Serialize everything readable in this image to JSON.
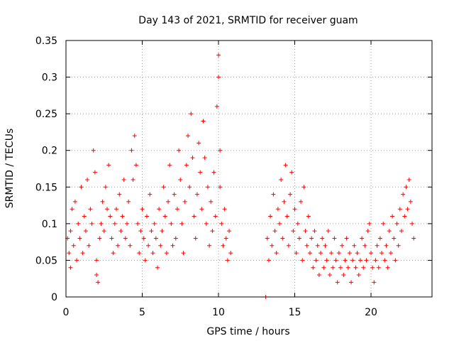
{
  "chart_data": {
    "type": "scatter",
    "title": "Day 143 of 2021, SRMTID for receiver guam",
    "xlabel": "GPS time / hours",
    "ylabel": "SRMTID / TECUs",
    "xlim": [
      0,
      24
    ],
    "ylim": [
      0,
      0.35
    ],
    "x_ticks": [
      0,
      5,
      10,
      15,
      20
    ],
    "x_tick_labels": [
      "0",
      "5",
      "10",
      "15",
      "20"
    ],
    "y_ticks": [
      0,
      0.05,
      0.1,
      0.15,
      0.2,
      0.25,
      0.3,
      0.35
    ],
    "y_tick_labels": [
      "0",
      "0.05",
      "0.1",
      "0.15",
      "0.2",
      "0.25",
      "0.3",
      "0.35"
    ],
    "grid": true,
    "marker": "+",
    "color": "#ff0000",
    "series": [
      {
        "name": "SRMTID",
        "points": [
          [
            0.1,
            0.08
          ],
          [
            0.2,
            0.06
          ],
          [
            0.3,
            0.09
          ],
          [
            0.3,
            0.04
          ],
          [
            0.4,
            0.12
          ],
          [
            0.5,
            0.07
          ],
          [
            0.6,
            0.13
          ],
          [
            0.7,
            0.05
          ],
          [
            0.8,
            0.1
          ],
          [
            0.9,
            0.08
          ],
          [
            1.0,
            0.15
          ],
          [
            1.1,
            0.06
          ],
          [
            1.2,
            0.11
          ],
          [
            1.3,
            0.09
          ],
          [
            1.4,
            0.16
          ],
          [
            1.5,
            0.07
          ],
          [
            1.6,
            0.12
          ],
          [
            1.7,
            0.1
          ],
          [
            1.8,
            0.2
          ],
          [
            1.9,
            0.17
          ],
          [
            2.0,
            0.05
          ],
          [
            2.0,
            0.03
          ],
          [
            2.1,
            0.02
          ],
          [
            2.2,
            0.08
          ],
          [
            2.3,
            0.1
          ],
          [
            2.4,
            0.13
          ],
          [
            2.5,
            0.09
          ],
          [
            2.6,
            0.15
          ],
          [
            2.7,
            0.12
          ],
          [
            2.8,
            0.18
          ],
          [
            2.9,
            0.11
          ],
          [
            3.0,
            0.08
          ],
          [
            3.1,
            0.06
          ],
          [
            3.2,
            0.1
          ],
          [
            3.3,
            0.12
          ],
          [
            3.4,
            0.07
          ],
          [
            3.5,
            0.14
          ],
          [
            3.6,
            0.09
          ],
          [
            3.7,
            0.11
          ],
          [
            3.8,
            0.16
          ],
          [
            3.9,
            0.08
          ],
          [
            4.0,
            0.1
          ],
          [
            4.1,
            0.13
          ],
          [
            4.2,
            0.07
          ],
          [
            4.3,
            0.2
          ],
          [
            4.4,
            0.16
          ],
          [
            4.5,
            0.22
          ],
          [
            4.6,
            0.18
          ],
          [
            4.7,
            0.1
          ],
          [
            4.8,
            0.06
          ],
          [
            4.9,
            0.09
          ],
          [
            5.0,
            0.12
          ],
          [
            5.1,
            0.08
          ],
          [
            5.2,
            0.05
          ],
          [
            5.3,
            0.11
          ],
          [
            5.4,
            0.07
          ],
          [
            5.5,
            0.14
          ],
          [
            5.6,
            0.09
          ],
          [
            5.7,
            0.06
          ],
          [
            5.8,
            0.1
          ],
          [
            5.9,
            0.08
          ],
          [
            6.0,
            0.04
          ],
          [
            6.1,
            0.12
          ],
          [
            6.2,
            0.07
          ],
          [
            6.3,
            0.09
          ],
          [
            6.4,
            0.15
          ],
          [
            6.5,
            0.11
          ],
          [
            6.6,
            0.06
          ],
          [
            6.7,
            0.13
          ],
          [
            6.8,
            0.18
          ],
          [
            6.9,
            0.1
          ],
          [
            7.0,
            0.07
          ],
          [
            7.1,
            0.14
          ],
          [
            7.2,
            0.08
          ],
          [
            7.3,
            0.12
          ],
          [
            7.4,
            0.2
          ],
          [
            7.5,
            0.16
          ],
          [
            7.6,
            0.1
          ],
          [
            7.7,
            0.06
          ],
          [
            7.8,
            0.13
          ],
          [
            7.9,
            0.18
          ],
          [
            8.0,
            0.22
          ],
          [
            8.1,
            0.15
          ],
          [
            8.2,
            0.25
          ],
          [
            8.3,
            0.19
          ],
          [
            8.4,
            0.11
          ],
          [
            8.5,
            0.08
          ],
          [
            8.6,
            0.14
          ],
          [
            8.7,
            0.21
          ],
          [
            8.8,
            0.17
          ],
          [
            8.9,
            0.12
          ],
          [
            9.0,
            0.24
          ],
          [
            9.1,
            0.19
          ],
          [
            9.2,
            0.1
          ],
          [
            9.3,
            0.15
          ],
          [
            9.4,
            0.07
          ],
          [
            9.5,
            0.13
          ],
          [
            9.6,
            0.09
          ],
          [
            9.7,
            0.17
          ],
          [
            9.8,
            0.11
          ],
          [
            9.9,
            0.26
          ],
          [
            10.0,
            0.33
          ],
          [
            10.0,
            0.3
          ],
          [
            10.1,
            0.2
          ],
          [
            10.1,
            0.15
          ],
          [
            10.2,
            0.1
          ],
          [
            10.3,
            0.07
          ],
          [
            10.4,
            0.12
          ],
          [
            10.5,
            0.08
          ],
          [
            10.6,
            0.05
          ],
          [
            10.7,
            0.09
          ],
          [
            10.8,
            0.06
          ],
          [
            13.1,
            0.0
          ],
          [
            13.2,
            0.08
          ],
          [
            13.3,
            0.05
          ],
          [
            13.4,
            0.11
          ],
          [
            13.5,
            0.07
          ],
          [
            13.6,
            0.14
          ],
          [
            13.7,
            0.09
          ],
          [
            13.8,
            0.06
          ],
          [
            13.9,
            0.12
          ],
          [
            14.0,
            0.1
          ],
          [
            14.1,
            0.16
          ],
          [
            14.2,
            0.08
          ],
          [
            14.3,
            0.13
          ],
          [
            14.4,
            0.18
          ],
          [
            14.5,
            0.11
          ],
          [
            14.6,
            0.07
          ],
          [
            14.7,
            0.14
          ],
          [
            14.8,
            0.17
          ],
          [
            14.9,
            0.09
          ],
          [
            15.0,
            0.12
          ],
          [
            15.1,
            0.06
          ],
          [
            15.2,
            0.1
          ],
          [
            15.3,
            0.08
          ],
          [
            15.4,
            0.13
          ],
          [
            15.5,
            0.05
          ],
          [
            15.6,
            0.15
          ],
          [
            15.7,
            0.09
          ],
          [
            15.8,
            0.07
          ],
          [
            15.9,
            0.11
          ],
          [
            16.0,
            0.06
          ],
          [
            16.1,
            0.08
          ],
          [
            16.2,
            0.04
          ],
          [
            16.3,
            0.09
          ],
          [
            16.4,
            0.05
          ],
          [
            16.5,
            0.07
          ],
          [
            16.6,
            0.03
          ],
          [
            16.7,
            0.06
          ],
          [
            16.8,
            0.08
          ],
          [
            16.9,
            0.04
          ],
          [
            17.0,
            0.07
          ],
          [
            17.1,
            0.05
          ],
          [
            17.2,
            0.09
          ],
          [
            17.3,
            0.03
          ],
          [
            17.4,
            0.06
          ],
          [
            17.5,
            0.04
          ],
          [
            17.6,
            0.08
          ],
          [
            17.7,
            0.05
          ],
          [
            17.8,
            0.02
          ],
          [
            17.9,
            0.06
          ],
          [
            18.0,
            0.04
          ],
          [
            18.1,
            0.07
          ],
          [
            18.2,
            0.03
          ],
          [
            18.3,
            0.05
          ],
          [
            18.4,
            0.08
          ],
          [
            18.5,
            0.04
          ],
          [
            18.6,
            0.06
          ],
          [
            18.7,
            0.02
          ],
          [
            18.8,
            0.05
          ],
          [
            18.9,
            0.07
          ],
          [
            19.0,
            0.04
          ],
          [
            19.1,
            0.06
          ],
          [
            19.2,
            0.03
          ],
          [
            19.3,
            0.05
          ],
          [
            19.4,
            0.08
          ],
          [
            19.5,
            0.04
          ],
          [
            19.6,
            0.07
          ],
          [
            19.7,
            0.05
          ],
          [
            19.8,
            0.09
          ],
          [
            19.9,
            0.1
          ],
          [
            20.0,
            0.06
          ],
          [
            20.1,
            0.04
          ],
          [
            20.2,
            0.02
          ],
          [
            20.3,
            0.05
          ],
          [
            20.4,
            0.07
          ],
          [
            20.5,
            0.04
          ],
          [
            20.6,
            0.08
          ],
          [
            20.7,
            0.06
          ],
          [
            20.8,
            0.1
          ],
          [
            20.9,
            0.05
          ],
          [
            21.0,
            0.07
          ],
          [
            21.1,
            0.04
          ],
          [
            21.2,
            0.09
          ],
          [
            21.3,
            0.06
          ],
          [
            21.4,
            0.11
          ],
          [
            21.5,
            0.08
          ],
          [
            21.6,
            0.05
          ],
          [
            21.7,
            0.1
          ],
          [
            21.8,
            0.07
          ],
          [
            21.9,
            0.12
          ],
          [
            22.0,
            0.09
          ],
          [
            22.1,
            0.14
          ],
          [
            22.2,
            0.11
          ],
          [
            22.3,
            0.15
          ],
          [
            22.4,
            0.12
          ],
          [
            22.5,
            0.16
          ],
          [
            22.6,
            0.13
          ],
          [
            22.7,
            0.1
          ],
          [
            22.8,
            0.08
          ]
        ]
      }
    ]
  }
}
